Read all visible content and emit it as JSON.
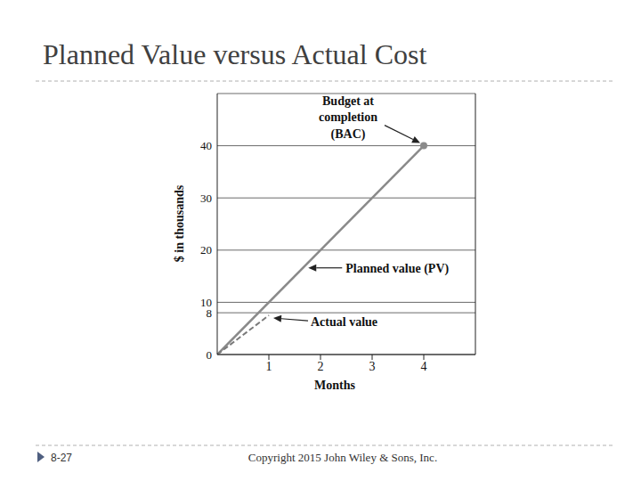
{
  "slide": {
    "title": "Planned Value versus Actual Cost",
    "number": "8-27",
    "copyright": "Copyright 2015 John Wiley & Sons, Inc."
  },
  "chart_data": {
    "type": "line",
    "x_label": "Months",
    "y_label": "$ in thousands",
    "xlim": [
      0,
      5
    ],
    "xticks": [
      1,
      2,
      3,
      4
    ],
    "ylim": [
      0,
      50
    ],
    "yticks": [
      0,
      8,
      10,
      20,
      30,
      40
    ],
    "grid": true,
    "series": [
      {
        "name": "Planned value (PV)",
        "color": "#8a8a8a",
        "line_style": "solid",
        "x": [
          0,
          4
        ],
        "values": [
          0,
          40
        ]
      },
      {
        "name": "Actual value",
        "color": "#7a7a7a",
        "line_style": "dashed",
        "x": [
          0,
          1
        ],
        "values": [
          0,
          7.5
        ]
      }
    ],
    "annotations": [
      {
        "text": "Budget at completion (BAC)",
        "x": 4,
        "y": 40
      }
    ]
  }
}
